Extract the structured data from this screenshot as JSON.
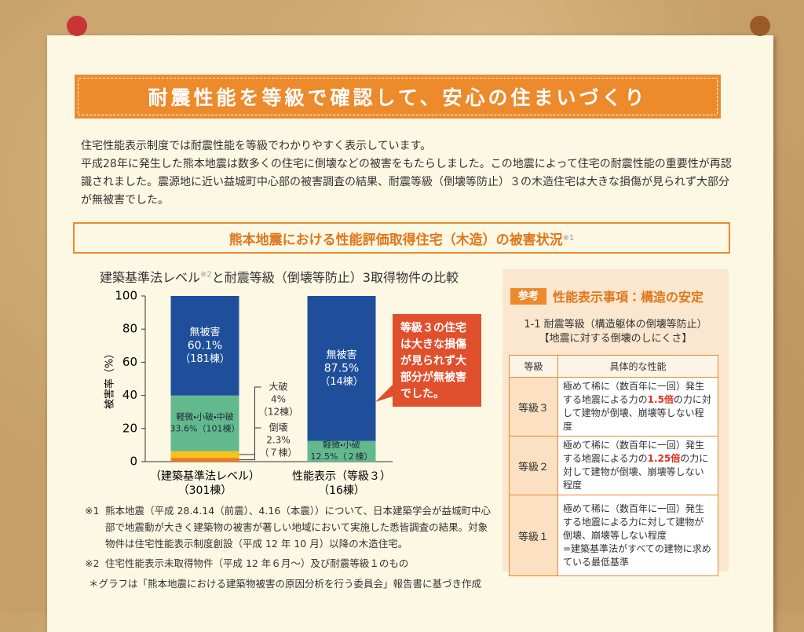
{
  "header": {
    "title": "耐震性能を等級で確認して、安心の住まいづくり"
  },
  "intro": {
    "paragraphs": [
      "住宅性能表示制度では耐震性能を等級でわかりやすく表示しています。",
      "平成28年に発生した熊本地震は数多くの住宅に倒壊などの被害をもたらしました。この地震によって住宅の耐震性能の重要性が再認識されました。震源地に近い益城町中心部の被害調査の結果、耐震等級（倒壊等防止）３の木造住宅は大きな損傷が見られず大部分が無被害でした。"
    ]
  },
  "section": {
    "title": "熊本地震における性能評価取得住宅（木造）の被害状況",
    "note": "※1"
  },
  "chart_data": {
    "type": "stacked-bar",
    "title": "建築基準法レベル",
    "title_note": "※2",
    "title_rest": "と耐震等級（倒壊等防止）3取得物件の比較",
    "y_label": "被害率（%）",
    "categories": [
      "（建築基準法レベル）",
      "性能表示（等級３）"
    ],
    "category_notes": [
      "（301棟）",
      "（16棟）"
    ],
    "ylim": [
      0,
      100
    ],
    "yticks": [
      0,
      20,
      40,
      60,
      80,
      100
    ],
    "series": [
      {
        "labels": [
          "倒壊",
          null
        ],
        "color": "#ec7a22",
        "values": [
          2.3,
          0
        ],
        "value_labels": [
          "2.3%",
          null
        ],
        "counts": [
          "（７棟）",
          null
        ],
        "label_position": "outside",
        "text_color": "#333333"
      },
      {
        "labels": [
          "大破",
          null
        ],
        "color": "#f6c21c",
        "values": [
          4,
          0
        ],
        "value_labels": [
          "4%",
          null
        ],
        "counts": [
          "（12棟）",
          null
        ],
        "label_position": "outside",
        "text_color": "#333333"
      },
      {
        "labels": [
          "軽微・小破・中破",
          "軽微・小破"
        ],
        "color": "#63b98e",
        "values": [
          33.6,
          12.5
        ],
        "value_labels": [
          "33.6%",
          "12.5%"
        ],
        "counts": [
          "（101棟）",
          "（２棟）"
        ],
        "label_position": "inside-inline",
        "text_color": "#1d2a3a"
      },
      {
        "labels": [
          "無被害",
          "無被害"
        ],
        "color": "#1f4f9b",
        "values": [
          60.1,
          87.5
        ],
        "value_labels": [
          "60.1%",
          "87.5%"
        ],
        "counts": [
          "（181棟）",
          "（14棟）"
        ],
        "label_position": "inside-stacked",
        "text_color": "#ffffff"
      }
    ],
    "callout": "等級３の住宅は大きな損傷が見られず大部分が無被害でした。"
  },
  "reference": {
    "tag": "参考",
    "title": "性能表示事項：構造の安定",
    "subtitle": "1-1 耐震等級（構造躯体の倒壊等防止）",
    "subtitle2": "【地震に対する倒壊のしにくさ】",
    "table": {
      "headers": [
        "等級",
        "具体的な性能"
      ],
      "rows": [
        {
          "grade": "等級３",
          "before": "極めて稀に（数百年に一回）発生する地震による力の",
          "highlight": "1.5倍",
          "after": "の力に対して建物が倒壊、崩壊等しない程度"
        },
        {
          "grade": "等級２",
          "before": "極めて稀に（数百年に一回）発生する地震による力の",
          "highlight": "1.25倍",
          "after": "の力に対して建物が倒壊、崩壊等しない程度"
        },
        {
          "grade": "等級１",
          "line1": "極めて稀に（数百年に一回）発生する地震による力に対して建物が倒壊、崩壊等しない程度",
          "line2": "=建築基準法がすべての建物に求めている最低基準"
        }
      ]
    }
  },
  "footnotes": {
    "items": [
      {
        "mark": "※1",
        "text": "熊本地震（平成 28.4.14（前震）、4.16（本震））について、日本建築学会が益城町中心部で地震動が大きく建築物の被害が著しい地域において実施した悉皆調査の結果。対象物件は住宅性能表示制度創設（平成 12 年 10 月）以降の木造住宅。"
      },
      {
        "mark": "※2",
        "text": "住宅性能表示未取得物件（平成 12 年６月～）及び耐震等級１のもの"
      }
    ],
    "source": "＊グラフは「熊本地震における建築物被害の原因分析を行う委員会」報告書に基づき作成"
  }
}
